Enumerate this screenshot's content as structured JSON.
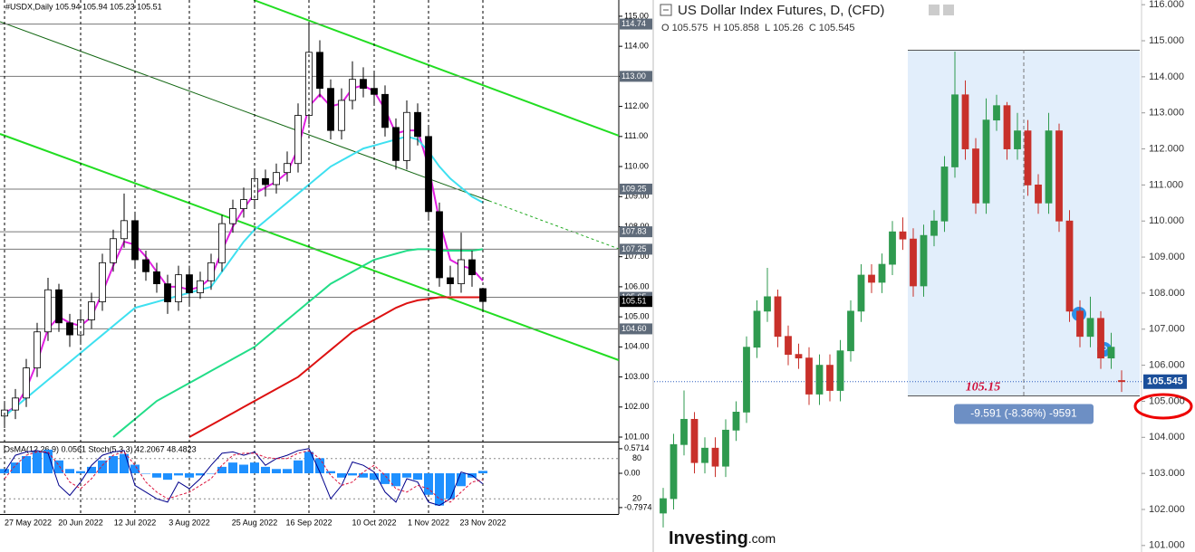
{
  "chart_data": [
    {
      "type": "candlestick",
      "title": "#USDX,Daily 105.94 105.94 105.23 105.51",
      "categories": [
        "27 May 2022",
        null,
        null,
        null,
        null,
        null,
        null,
        "20 Jun 2022",
        null,
        null,
        null,
        null,
        "12 Jul 2022",
        null,
        null,
        null,
        null,
        "3 Aug 2022",
        null,
        null,
        null,
        null,
        null,
        "25 Aug 2022",
        null,
        null,
        null,
        null,
        "16 Sep 2022",
        null,
        null,
        null,
        null,
        null,
        "10 Oct 2022",
        null,
        null,
        null,
        null,
        "1 Nov 2022",
        null,
        null,
        null,
        null,
        "23 Nov 2022"
      ],
      "open": [
        101.7,
        101.9,
        102.3,
        103.3,
        104.5,
        105.9,
        104.8,
        104.4,
        104.9,
        105.5,
        106.8,
        107.6,
        108.2,
        106.9,
        106.5,
        106.1,
        105.5,
        106.4,
        105.8,
        106.2,
        106.8,
        108.1,
        108.6,
        108.9,
        109.6,
        109.4,
        109.8,
        110.1,
        111.7,
        113.8,
        112.6,
        111.2,
        112.2,
        112.9,
        112.6,
        112.4,
        111.3,
        110.2,
        111.8,
        111.0,
        108.5,
        106.3,
        106.1,
        106.9,
        105.94
      ],
      "high": [
        102.2,
        102.6,
        103.6,
        104.8,
        106.3,
        106.1,
        105.1,
        105.2,
        105.8,
        107.1,
        107.9,
        109.1,
        108.5,
        107.2,
        106.8,
        106.4,
        106.7,
        106.7,
        106.5,
        107.1,
        108.4,
        108.9,
        109.3,
        109.9,
        109.9,
        110.1,
        110.5,
        112.1,
        114.74,
        114.2,
        112.9,
        112.6,
        113.5,
        113.3,
        113.1,
        112.7,
        111.6,
        112.2,
        112.1,
        111.3,
        108.8,
        106.7,
        107.8,
        107.2,
        105.94
      ],
      "low": [
        101.3,
        101.6,
        102.0,
        103.0,
        104.2,
        104.5,
        104.0,
        104.1,
        104.6,
        105.2,
        106.5,
        107.3,
        106.6,
        106.2,
        105.8,
        105.1,
        105.2,
        105.4,
        105.6,
        105.9,
        106.5,
        107.8,
        108.3,
        108.6,
        109.0,
        109.1,
        109.5,
        109.8,
        111.4,
        112.3,
        110.9,
        110.9,
        111.9,
        112.3,
        112.1,
        111.0,
        109.9,
        109.9,
        110.7,
        108.2,
        106.0,
        105.7,
        105.8,
        106.0,
        105.23
      ],
      "close": [
        101.9,
        102.3,
        103.3,
        104.5,
        105.9,
        104.8,
        104.4,
        104.9,
        105.5,
        106.8,
        107.6,
        108.2,
        106.9,
        106.5,
        106.1,
        105.5,
        106.4,
        105.8,
        106.2,
        106.8,
        108.1,
        108.6,
        108.9,
        109.6,
        109.4,
        109.8,
        110.1,
        111.7,
        113.8,
        112.6,
        111.2,
        112.2,
        112.9,
        112.6,
        112.4,
        111.3,
        110.2,
        111.8,
        111.0,
        108.5,
        106.3,
        106.1,
        106.9,
        106.4,
        105.51
      ],
      "up_color": "#ffffff",
      "down_color": "#000000",
      "lines": [
        {
          "color": "#e020e0",
          "values": [
            101.8,
            102.0,
            102.6,
            103.5,
            104.6,
            105.0,
            104.8,
            104.7,
            105.0,
            105.8,
            106.7,
            107.5,
            107.4,
            107.0,
            106.5,
            106.0,
            106.0,
            105.9,
            106.0,
            106.3,
            107.2,
            108.0,
            108.6,
            109.1,
            109.3,
            109.5,
            109.8,
            110.6,
            112.0,
            112.4,
            112.0,
            112.1,
            112.6,
            112.7,
            112.5,
            111.9,
            111.1,
            111.2,
            111.2,
            110.0,
            108.2,
            106.9,
            106.7,
            106.6,
            106.2
          ]
        },
        {
          "color": "#3ee0f0",
          "values": [
            101.7,
            102.0,
            102.3,
            102.6,
            102.9,
            103.2,
            103.5,
            103.8,
            104.1,
            104.4,
            104.7,
            105.0,
            105.3,
            105.4,
            105.5,
            105.6,
            105.7,
            105.8,
            105.9,
            106.0,
            106.5,
            107.0,
            107.5,
            107.9,
            108.2,
            108.5,
            108.8,
            109.1,
            109.4,
            109.7,
            110.0,
            110.2,
            110.4,
            110.6,
            110.7,
            110.8,
            110.9,
            111.0,
            110.9,
            110.5,
            110.0,
            109.6,
            109.3,
            109.0,
            108.8
          ]
        },
        {
          "color": "#22dd88",
          "values": [
            null,
            null,
            null,
            null,
            null,
            null,
            null,
            null,
            null,
            null,
            101.0,
            101.3,
            101.6,
            101.9,
            102.2,
            102.4,
            102.6,
            102.8,
            103.0,
            103.2,
            103.4,
            103.6,
            103.8,
            104.0,
            104.3,
            104.6,
            104.9,
            105.2,
            105.5,
            105.8,
            106.1,
            106.3,
            106.5,
            106.7,
            106.9,
            107.0,
            107.1,
            107.2,
            107.25,
            107.25,
            107.2,
            107.2,
            107.2,
            107.2,
            107.25
          ]
        },
        {
          "color": "#dd1111",
          "values": [
            null,
            null,
            null,
            null,
            null,
            null,
            null,
            null,
            null,
            null,
            null,
            null,
            null,
            null,
            null,
            null,
            null,
            101.0,
            101.2,
            101.4,
            101.6,
            101.8,
            102.0,
            102.2,
            102.4,
            102.6,
            102.8,
            103.0,
            103.3,
            103.6,
            103.9,
            104.2,
            104.5,
            104.7,
            104.9,
            105.1,
            105.3,
            105.45,
            105.55,
            105.6,
            105.65,
            105.65,
            105.65,
            105.65,
            105.65
          ]
        }
      ],
      "levels": [
        114.74,
        {
          "value": 113,
          "label": "113.00"
        },
        109.25,
        107.83,
        107.25,
        105.65,
        {
          "value": 104.6,
          "label": "104.60"
        }
      ],
      "ylim": [
        100.85,
        115.54
      ],
      "yticks": [
        {
          "value": 101,
          "label": "101.00"
        },
        {
          "value": 102,
          "label": "102.00"
        },
        {
          "value": 103,
          "label": "103.00"
        },
        {
          "value": 104,
          "label": "104.00"
        },
        {
          "value": 105,
          "label": "105.00"
        },
        {
          "value": 106,
          "label": "106.00"
        },
        {
          "value": 107,
          "label": "107.00"
        },
        {
          "value": 108,
          "label": "108.00"
        },
        {
          "value": 109,
          "label": "109.00"
        },
        {
          "value": 110,
          "label": "110.00"
        },
        {
          "value": 111,
          "label": "111.00"
        },
        {
          "value": 112,
          "label": "112.00"
        },
        {
          "value": 113,
          "label": "113.00"
        },
        {
          "value": 114,
          "label": "114.00"
        },
        {
          "value": 115,
          "label": "115.00"
        }
      ],
      "indicator": {
        "title": "OsMA(12,26,9) 0.0561 Stoch(5,3,3) 42.2067 48.4823",
        "osma": {
          "color": "#1e90ff",
          "ylim": [
            -0.947,
            0.695
          ],
          "yticks": [
            0.5714,
            {
              "value": 0,
              "label": "0.00"
            },
            -0.7974
          ],
          "values": [
            0.1,
            0.25,
            0.4,
            0.5,
            0.55,
            0.3,
            0.1,
            0.05,
            0.15,
            0.3,
            0.4,
            0.45,
            0.2,
            0.0,
            -0.1,
            -0.15,
            -0.05,
            -0.1,
            -0.05,
            0.0,
            0.15,
            0.25,
            0.2,
            0.25,
            0.15,
            0.1,
            0.1,
            0.3,
            0.5,
            0.35,
            0.05,
            -0.1,
            -0.05,
            -0.1,
            -0.15,
            -0.25,
            -0.3,
            -0.1,
            -0.15,
            -0.5,
            -0.75,
            -0.6,
            -0.3,
            -0.1,
            0.0561
          ]
        },
        "stoch": {
          "ylim": [
            0,
            100
          ],
          "yticks": [
            80,
            20
          ],
          "main": {
            "color": "#00008b",
            "values": [
              60,
              85,
              90,
              92,
              88,
              40,
              25,
              45,
              70,
              85,
              90,
              92,
              40,
              30,
              20,
              15,
              45,
              35,
              50,
              70,
              88,
              90,
              85,
              90,
              70,
              80,
              85,
              92,
              95,
              60,
              20,
              40,
              75,
              70,
              60,
              30,
              15,
              50,
              45,
              15,
              10,
              20,
              60,
              55,
              42.2067
            ]
          },
          "signal": {
            "color": "#dc143c",
            "values": [
              50,
              70,
              85,
              90,
              90,
              70,
              45,
              35,
              50,
              70,
              85,
              90,
              70,
              45,
              30,
              20,
              25,
              30,
              40,
              50,
              70,
              85,
              88,
              88,
              82,
              80,
              80,
              88,
              92,
              80,
              55,
              40,
              45,
              60,
              70,
              55,
              35,
              30,
              40,
              35,
              20,
              15,
              30,
              45,
              48.4823
            ]
          }
        }
      }
    },
    {
      "type": "candlestick",
      "title": "US Dollar Index Futures, D, (CFD)",
      "ohlc": [
        {
          "label": "O",
          "value": 105.575
        },
        {
          "label": "H",
          "value": 105.858
        },
        {
          "label": "L",
          "value": 105.26
        },
        {
          "label": "C",
          "value": 105.545
        }
      ],
      "open": [
        101.9,
        102.3,
        103.8,
        104.5,
        103.3,
        103.7,
        103.2,
        104.2,
        104.7,
        106.5,
        107.5,
        107.9,
        106.8,
        106.3,
        106.2,
        105.2,
        106.0,
        105.3,
        106.4,
        107.5,
        108.5,
        108.3,
        108.8,
        109.7,
        109.5,
        108.2,
        109.6,
        110.0,
        111.5,
        113.5,
        112.0,
        110.5,
        112.8,
        113.2,
        112.0,
        112.5,
        111.0,
        110.5,
        112.5,
        110.0,
        107.5,
        106.8,
        107.3,
        106.2,
        105.575
      ],
      "high": [
        102.6,
        104.1,
        105.3,
        104.7,
        104.0,
        104.0,
        104.5,
        105.0,
        106.8,
        107.8,
        108.7,
        108.1,
        107.1,
        106.6,
        106.5,
        106.3,
        106.3,
        106.7,
        107.8,
        108.8,
        108.8,
        109.1,
        110.0,
        110.1,
        109.8,
        109.9,
        110.3,
        111.8,
        114.7,
        113.9,
        112.3,
        113.4,
        113.5,
        113.3,
        113.0,
        112.8,
        111.3,
        113.0,
        112.7,
        110.3,
        107.8,
        107.9,
        107.5,
        106.9,
        105.858
      ],
      "low": [
        101.5,
        102.0,
        103.5,
        103.0,
        103.0,
        102.9,
        102.9,
        103.9,
        104.4,
        106.2,
        107.2,
        106.5,
        106.0,
        105.9,
        104.9,
        104.9,
        105.0,
        105.0,
        106.1,
        107.2,
        108.0,
        108.0,
        108.5,
        109.2,
        107.9,
        107.9,
        109.3,
        109.7,
        111.2,
        111.7,
        110.2,
        110.2,
        112.5,
        111.7,
        111.7,
        110.7,
        110.2,
        110.2,
        109.7,
        107.2,
        106.5,
        106.5,
        105.9,
        105.9,
        105.26
      ],
      "close": [
        102.3,
        103.8,
        104.5,
        103.3,
        103.7,
        103.2,
        104.2,
        104.7,
        106.5,
        107.5,
        107.9,
        106.8,
        106.3,
        106.2,
        105.2,
        106.0,
        105.3,
        106.4,
        107.5,
        108.5,
        108.3,
        108.8,
        109.7,
        109.5,
        108.2,
        109.6,
        110.0,
        111.5,
        113.5,
        112.0,
        110.5,
        112.8,
        113.2,
        112.0,
        112.5,
        111.0,
        110.5,
        112.5,
        110.0,
        107.5,
        106.8,
        107.3,
        106.2,
        106.5,
        105.545
      ],
      "up_color": "#2f9a4f",
      "down_color": "#c8302a",
      "ylim": [
        100.82,
        116.13
      ],
      "yticks": [
        {
          "value": 101,
          "label": "101.000"
        },
        {
          "value": 102,
          "label": "102.000"
        },
        {
          "value": 103,
          "label": "103.000"
        },
        {
          "value": 104,
          "label": "104.000"
        },
        {
          "value": 105,
          "label": "105.000"
        },
        {
          "value": 106,
          "label": "106.000"
        },
        {
          "value": 107,
          "label": "107.000"
        },
        {
          "value": 108,
          "label": "108.000"
        },
        {
          "value": 109,
          "label": "109.000"
        },
        {
          "value": 110,
          "label": "110.000"
        },
        {
          "value": 111,
          "label": "111.000"
        },
        {
          "value": 112,
          "label": "112.000"
        },
        {
          "value": 113,
          "label": "113.000"
        },
        {
          "value": 114,
          "label": "114.000"
        },
        {
          "value": 115,
          "label": "115.000"
        },
        {
          "value": 116,
          "label": "116.000"
        }
      ],
      "measure": {
        "low": 105.15,
        "change": "-9.591 (-8.36%) -9591"
      },
      "logo": {
        "name": "Investing",
        "suffix": ".com"
      }
    }
  ]
}
